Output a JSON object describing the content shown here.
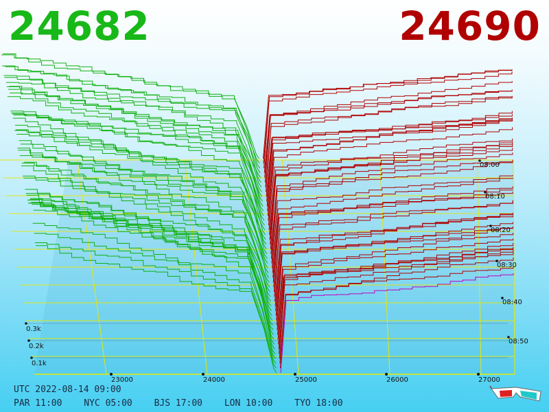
{
  "header": {
    "bid": "24682",
    "ask": "24690",
    "bid_color": "#18b818",
    "ask_color": "#b00000"
  },
  "footer": {
    "utc": "UTC 2022-08-14 09:00",
    "zones": [
      "PAR 11:00",
      "NYC 05:00",
      "BJS 17:00",
      "LON 10:00",
      "TYO 18:00"
    ]
  },
  "icons": {
    "glasses": "3d-glasses-icon"
  },
  "chart_data": {
    "type": "3d-depth",
    "price_ticks": [
      "23000",
      "24000",
      "25000",
      "26000",
      "27000"
    ],
    "volume_ticks": [
      "0.1k",
      "0.2k",
      "0.3k"
    ],
    "time_ticks": [
      "08:00",
      "08:10",
      "08:20",
      "08:30",
      "08:40",
      "08:50"
    ],
    "bid_color": "#10b010",
    "ask_color": "#b00000",
    "latest_ask_color": "#c000c0",
    "grid_color": "#e8e800"
  }
}
